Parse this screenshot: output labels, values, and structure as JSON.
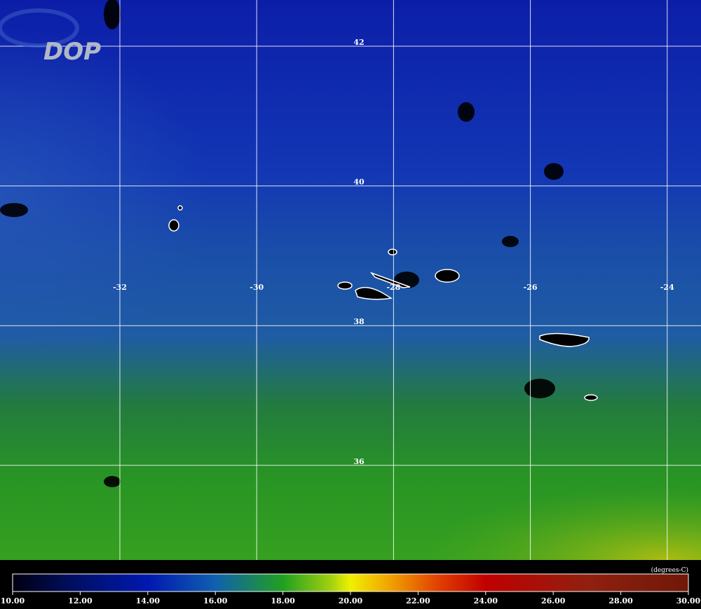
{
  "map": {
    "logo": "DOP",
    "lat_ticks": [
      42,
      40,
      38,
      36
    ],
    "lon_ticks": [
      -32,
      -30,
      -28,
      -26,
      -24
    ],
    "colorbar": {
      "unit": "(degrees-C)",
      "range": [
        10,
        30
      ],
      "ticks": [
        {
          "value": 10,
          "label": "10.00"
        },
        {
          "value": 12,
          "label": "12.00"
        },
        {
          "value": 14,
          "label": "14.00"
        },
        {
          "value": 16,
          "label": "16.00"
        },
        {
          "value": 18,
          "label": "18.00"
        },
        {
          "value": 20,
          "label": "20.00"
        },
        {
          "value": 22,
          "label": "22.00"
        },
        {
          "value": 24,
          "label": "24.00"
        },
        {
          "value": 26,
          "label": "26.00"
        },
        {
          "value": 28,
          "label": "28.00"
        },
        {
          "value": 30,
          "label": "30.00"
        }
      ]
    }
  }
}
